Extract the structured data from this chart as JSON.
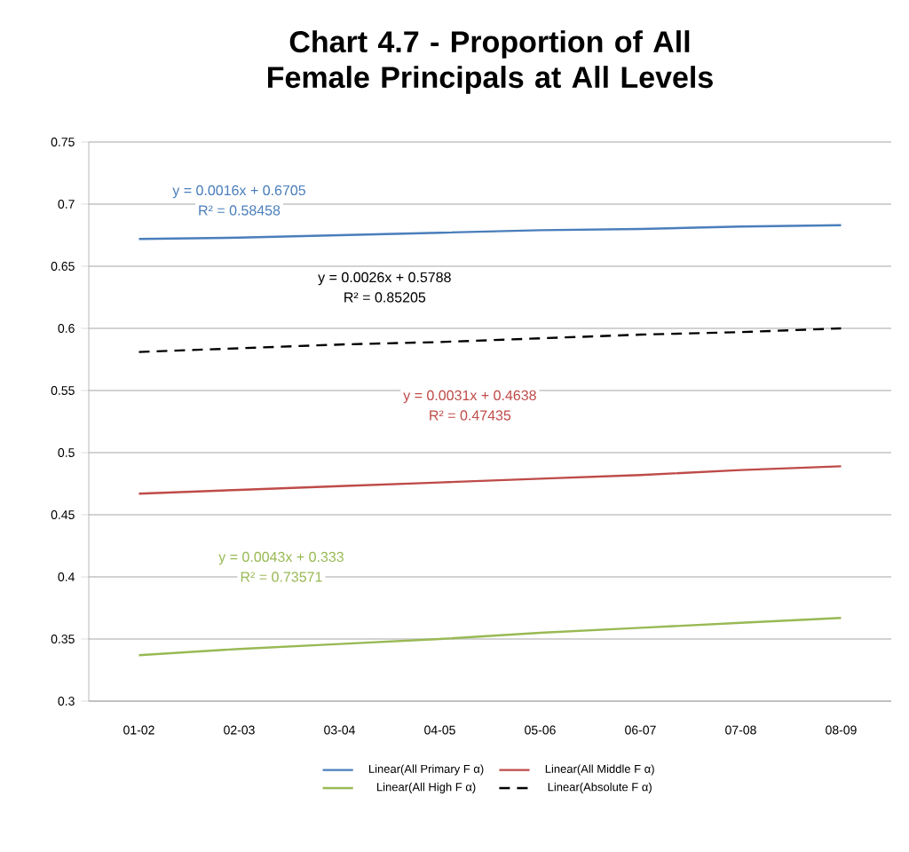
{
  "chart_data": {
    "type": "line",
    "title": "Chart 4.7 - Proportion of All Female Principals at All Levels",
    "categories": [
      "01-02",
      "02-03",
      "03-04",
      "04-05",
      "05-06",
      "06-07",
      "07-08",
      "08-09"
    ],
    "series": [
      {
        "name": "Linear(All Primary F α)",
        "color": "#4a7ebb",
        "line_style": "solid",
        "values": [
          0.672,
          0.673,
          0.675,
          0.677,
          0.679,
          0.68,
          0.682,
          0.683
        ]
      },
      {
        "name": "Linear(All Middle F α)",
        "color": "#be4b48",
        "line_style": "solid",
        "values": [
          0.467,
          0.47,
          0.473,
          0.476,
          0.479,
          0.482,
          0.486,
          0.489
        ]
      },
      {
        "name": "Linear(All High F α)",
        "color": "#98b954",
        "line_style": "solid",
        "values": [
          0.337,
          0.342,
          0.346,
          0.35,
          0.355,
          0.359,
          0.363,
          0.367
        ]
      },
      {
        "name": "Linear(Absolute F α)",
        "color": "#000000",
        "line_style": "dashed",
        "values": [
          0.581,
          0.584,
          0.587,
          0.589,
          0.592,
          0.595,
          0.597,
          0.6
        ]
      }
    ],
    "annotations": [
      "y = 0.0016x + 0.6705",
      "R² = 0.58458",
      "y = 0.0026x + 0.5788",
      "R² = 0.85205",
      "y = 0.0031x + 0.4638",
      "R² = 0.47435",
      "y = 0.0043x + 0.333",
      "R² = 0.73571"
    ],
    "ylim": [
      0.3,
      0.75
    ],
    "yticks": [
      0.3,
      0.35,
      0.4,
      0.45,
      0.5,
      0.55,
      0.6,
      0.65,
      0.7,
      0.75
    ],
    "grid": "y",
    "legend": "bottom",
    "marker": "none"
  }
}
